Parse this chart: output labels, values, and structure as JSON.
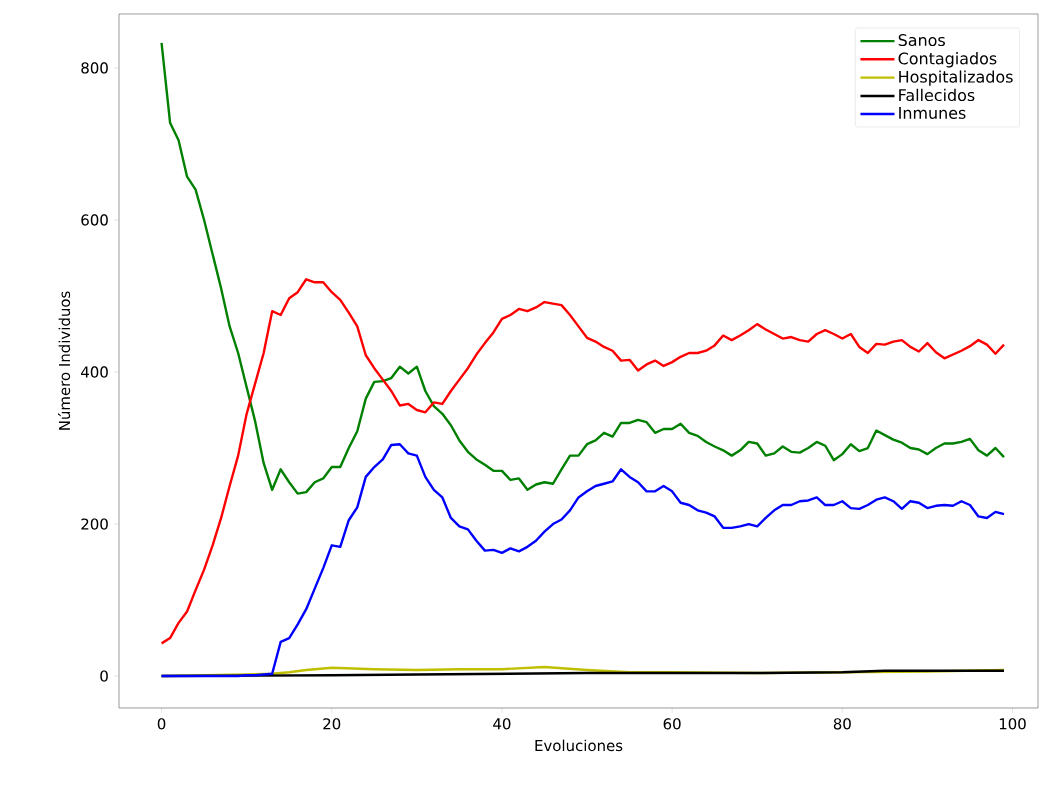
{
  "chart_data": {
    "type": "line",
    "xlabel": "Evoluciones",
    "ylabel": "Número Individuos",
    "x": [
      0,
      1,
      2,
      3,
      4,
      5,
      6,
      7,
      8,
      9,
      10,
      11,
      12,
      13,
      14,
      15,
      16,
      17,
      18,
      19,
      20,
      21,
      22,
      23,
      24,
      25,
      26,
      27,
      28,
      29,
      30,
      31,
      32,
      33,
      34,
      35,
      36,
      37,
      38,
      39,
      40,
      41,
      42,
      43,
      44,
      45,
      46,
      47,
      48,
      49,
      50,
      51,
      52,
      53,
      54,
      55,
      56,
      57,
      58,
      59,
      60,
      61,
      62,
      63,
      64,
      65,
      66,
      67,
      68,
      69,
      70,
      71,
      72,
      73,
      74,
      75,
      76,
      77,
      78,
      79,
      80,
      81,
      82,
      83,
      84,
      85,
      86,
      87,
      88,
      89,
      90,
      91,
      92,
      93,
      94,
      95,
      96,
      97,
      98,
      99
    ],
    "xlim": [
      -5,
      103
    ],
    "ylim": [
      -42,
      871
    ],
    "xticks": [
      0,
      20,
      40,
      60,
      80,
      100
    ],
    "yticks": [
      0,
      200,
      400,
      600,
      800
    ],
    "legend": "top right",
    "grid": false,
    "marker": "none",
    "line_style": "solid",
    "series": [
      {
        "name": "Sanos",
        "color": "#008000",
        "values": [
          833,
          728,
          705,
          657,
          640,
          600,
          555,
          510,
          460,
          425,
          380,
          335,
          280,
          245,
          272,
          255,
          240,
          242,
          255,
          260,
          275,
          275,
          300,
          322,
          365,
          387,
          388,
          392,
          407,
          398,
          407,
          375,
          355,
          345,
          330,
          310,
          295,
          285,
          278,
          270,
          270,
          258,
          260,
          245,
          252,
          255,
          253,
          272,
          290,
          290,
          305,
          310,
          320,
          315,
          333,
          333,
          337,
          334,
          320,
          325,
          325,
          332,
          320,
          316,
          308,
          302,
          297,
          290,
          297,
          308,
          306,
          290,
          293,
          302,
          295,
          294,
          300,
          308,
          303,
          284,
          292,
          305,
          296,
          300,
          323,
          317,
          311,
          307,
          300,
          298,
          292,
          300,
          306,
          306,
          308,
          312,
          297,
          290,
          300,
          288
        ]
      },
      {
        "name": "Contagiados",
        "color": "#ff0000",
        "values": [
          43,
          50,
          70,
          85,
          113,
          140,
          172,
          208,
          250,
          290,
          345,
          385,
          425,
          480,
          475,
          497,
          505,
          522,
          518,
          518,
          505,
          495,
          478,
          460,
          422,
          405,
          390,
          375,
          356,
          358,
          350,
          347,
          360,
          358,
          375,
          390,
          405,
          423,
          438,
          452,
          470,
          475,
          483,
          480,
          485,
          492,
          490,
          488,
          475,
          460,
          445,
          440,
          433,
          428,
          415,
          416,
          402,
          410,
          415,
          408,
          413,
          420,
          425,
          425,
          428,
          435,
          448,
          442,
          448,
          455,
          463,
          456,
          450,
          444,
          446,
          442,
          440,
          450,
          455,
          450,
          444,
          450,
          433,
          425,
          437,
          436,
          440,
          442,
          433,
          427,
          438,
          426,
          418,
          423,
          428,
          434,
          442,
          436,
          424,
          436
        ]
      },
      {
        "name": "Hospitalizados",
        "color": "#bfbf00",
        "x": [
          0,
          5,
          10,
          13,
          15,
          17,
          20,
          25,
          30,
          35,
          40,
          45,
          50,
          55,
          60,
          70,
          80,
          90,
          99
        ],
        "values": [
          0,
          1,
          2,
          3,
          5,
          8,
          11,
          9,
          8,
          9,
          9,
          12,
          8,
          5,
          5,
          4,
          5,
          6,
          8
        ]
      },
      {
        "name": "Fallecidos",
        "color": "#000000",
        "x": [
          0,
          20,
          30,
          50,
          60,
          70,
          80,
          85,
          99
        ],
        "values": [
          0,
          1,
          2,
          4,
          4,
          4,
          5,
          7,
          7
        ]
      },
      {
        "name": "Inmunes",
        "color": "#0000ff",
        "values": [
          0,
          0,
          0,
          0,
          0,
          0,
          0,
          0,
          0,
          0,
          1,
          1,
          2,
          3,
          45,
          50,
          68,
          88,
          115,
          142,
          172,
          170,
          205,
          222,
          262,
          275,
          285,
          304,
          305,
          293,
          290,
          262,
          245,
          235,
          208,
          197,
          193,
          178,
          165,
          166,
          162,
          168,
          164,
          170,
          178,
          190,
          200,
          206,
          218,
          235,
          243,
          250,
          253,
          256,
          272,
          262,
          255,
          243,
          243,
          250,
          243,
          228,
          225,
          218,
          215,
          210,
          195,
          195,
          197,
          200,
          197,
          208,
          218,
          225,
          225,
          230,
          231,
          235,
          225,
          225,
          230,
          221,
          220,
          225,
          232,
          235,
          230,
          220,
          230,
          228,
          221,
          224,
          225,
          224,
          230,
          225,
          210,
          208,
          216,
          213
        ]
      }
    ]
  }
}
